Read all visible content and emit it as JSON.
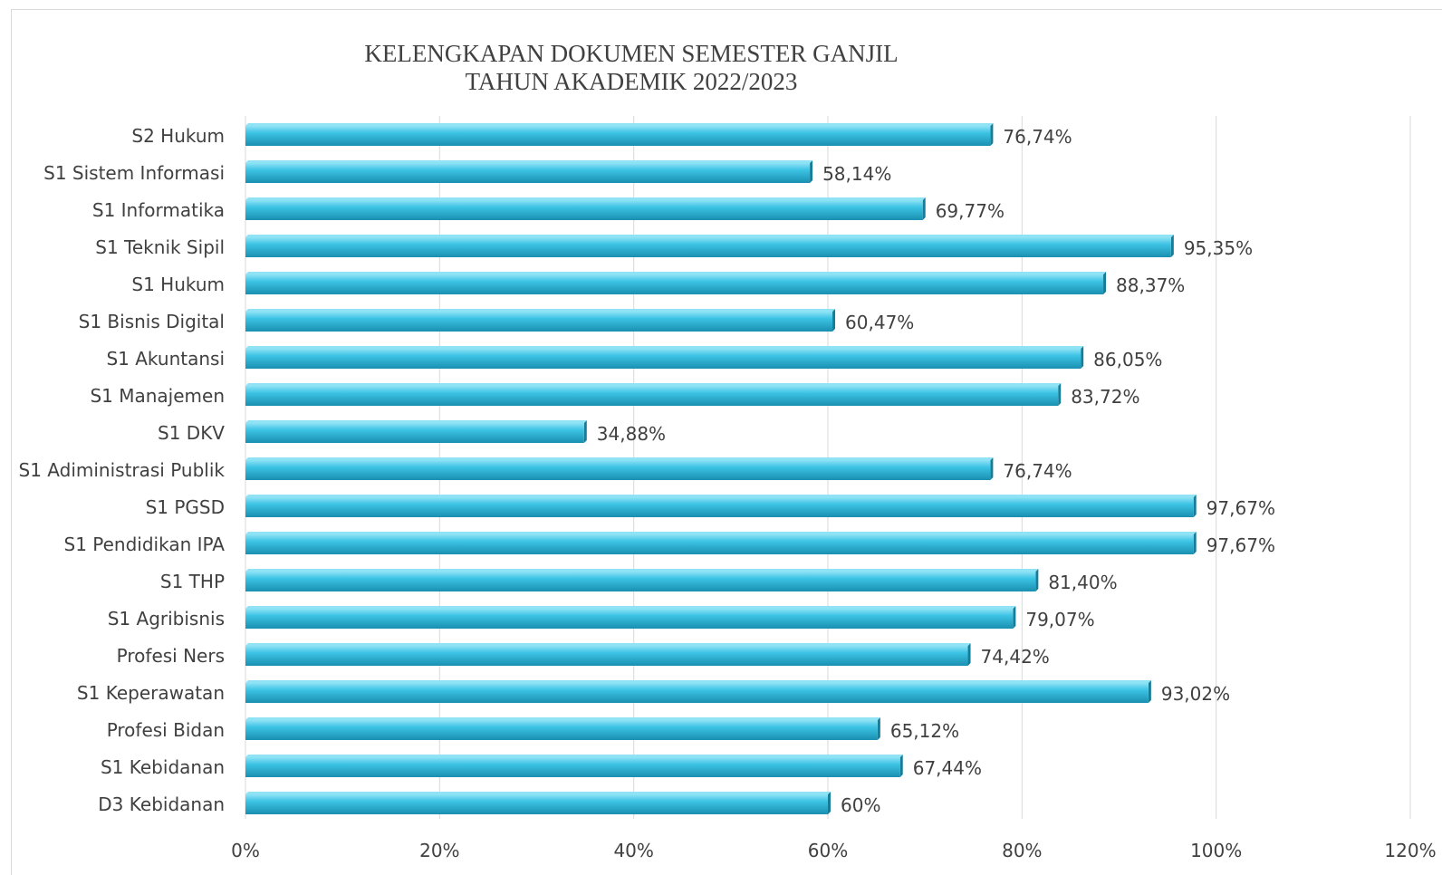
{
  "chart_data": {
    "type": "bar",
    "orientation": "horizontal",
    "title_line1": "KELENGKAPAN DOKUMEN SEMESTER GANJIL",
    "title_line2": "TAHUN AKADEMIK 2022/2023",
    "categories": [
      "S2 Hukum",
      "S1 Sistem Informasi",
      "S1 Informatika",
      "S1 Teknik Sipil",
      "S1 Hukum",
      "S1 Bisnis Digital",
      "S1 Akuntansi",
      "S1 Manajemen",
      "S1 DKV",
      "S1 Adiministrasi Publik",
      "S1 PGSD",
      "S1 Pendidikan IPA",
      "S1 THP",
      "S1 Agribisnis",
      "Profesi Ners",
      "S1 Keperawatan",
      "Profesi Bidan",
      "S1 Kebidanan",
      "D3 Kebidanan"
    ],
    "values": [
      76.74,
      58.14,
      69.77,
      95.35,
      88.37,
      60.47,
      86.05,
      83.72,
      34.88,
      76.74,
      97.67,
      97.67,
      81.4,
      79.07,
      74.42,
      93.02,
      65.12,
      67.44,
      60
    ],
    "data_labels": [
      "76,74%",
      "58,14%",
      "69,77%",
      "95,35%",
      "88,37%",
      "60,47%",
      "86,05%",
      "83,72%",
      "34,88%",
      "76,74%",
      "97,67%",
      "97,67%",
      "81,40%",
      "79,07%",
      "74,42%",
      "93,02%",
      "65,12%",
      "67,44%",
      "60%"
    ],
    "x_ticks": [
      0,
      20,
      40,
      60,
      80,
      100,
      120
    ],
    "x_tick_labels": [
      "0%",
      "20%",
      "40%",
      "60%",
      "80%",
      "100%",
      "120%"
    ],
    "xlim": [
      0,
      120
    ],
    "grid": true,
    "legend": "none",
    "colors": {
      "bar_top": "#8fe3f5",
      "bar_mid": "#3cc3e4",
      "bar_bottom": "#1a8fb0",
      "bar_end": "#167d99",
      "gridline": "#d9d9d9",
      "text": "#404040"
    }
  }
}
